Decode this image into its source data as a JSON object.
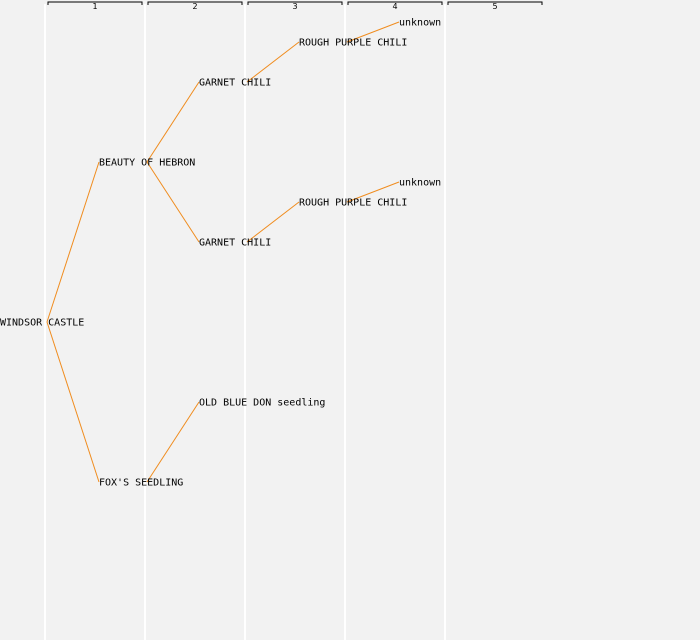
{
  "generations": [
    "1",
    "2",
    "3",
    "4",
    "5"
  ],
  "colors": {
    "background": "#f2f2f2",
    "column_divider": "#ffffff",
    "bracket": "#000000",
    "edge": "#f08c1e"
  },
  "tree": {
    "name": "WINDSOR CASTLE",
    "children": [
      {
        "name": "BEAUTY OF HEBRON",
        "children": [
          {
            "name": "GARNET CHILI",
            "children": [
              {
                "name": "ROUGH PURPLE CHILI",
                "children": [
                  {
                    "name": "unknown"
                  }
                ]
              }
            ]
          },
          {
            "name": "GARNET CHILI",
            "children": [
              {
                "name": "ROUGH PURPLE CHILI",
                "children": [
                  {
                    "name": "unknown"
                  }
                ]
              }
            ]
          }
        ]
      },
      {
        "name": "FOX'S SEEDLING",
        "children": [
          {
            "name": "OLD BLUE DON seedling"
          }
        ]
      }
    ]
  }
}
